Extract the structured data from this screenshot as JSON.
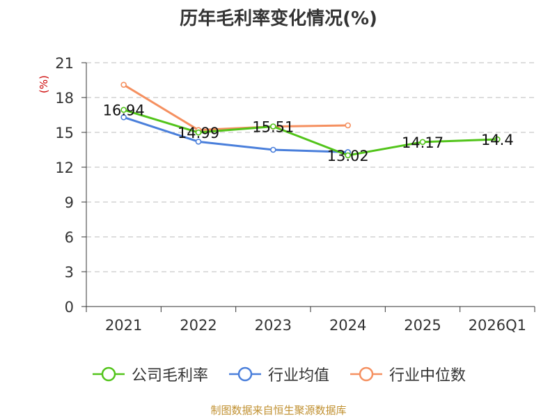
{
  "chart_data": {
    "type": "line",
    "title": "历年毛利率变化情况(%)",
    "ylabel": "(%)",
    "categories": [
      "2021",
      "2022",
      "2023",
      "2024",
      "2025",
      "2026Q1"
    ],
    "ylim": [
      0,
      21
    ],
    "yticks": [
      "0",
      "3",
      "6",
      "9",
      "12",
      "15",
      "18",
      "21"
    ],
    "series": [
      {
        "name": "公司毛利率",
        "color": "#52c41a",
        "values": [
          16.94,
          14.99,
          15.51,
          13.02,
          14.17,
          14.4
        ],
        "labels": [
          "16.94",
          "14.99",
          "15.51",
          "13.02",
          "14.17",
          "14.4"
        ]
      },
      {
        "name": "行业均值",
        "color": "#4a7fdb",
        "values": [
          16.3,
          14.2,
          13.5,
          13.3,
          null,
          null
        ]
      },
      {
        "name": "行业中位数",
        "color": "#f59060",
        "values": [
          19.1,
          15.2,
          15.5,
          15.6,
          null,
          null
        ]
      }
    ],
    "source": "制图数据来自恒生聚源数据库",
    "unit_color": "#cc0000",
    "source_color": "#c09030"
  }
}
